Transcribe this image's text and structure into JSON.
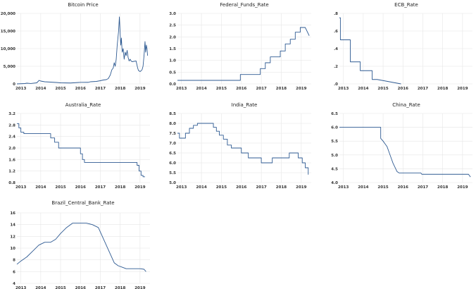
{
  "colors": {
    "series": "#2e5a92",
    "grid": "#e6e6e6",
    "background": "#ffffff"
  },
  "chart_data": [
    {
      "type": "line",
      "title": "Bitcoin Price",
      "x_ticks": [
        "2013",
        "2014",
        "2015",
        "2016",
        "2017",
        "2018",
        "2019"
      ],
      "xlim": [
        2012.8,
        2019.5
      ],
      "y_ticks": [
        0,
        5000,
        10000,
        15000,
        20000
      ],
      "y_tick_labels": [
        "0",
        "5,000",
        "10,000",
        "15,000",
        "20,000"
      ],
      "ylim": [
        0,
        20000
      ],
      "grid": true,
      "series": [
        {
          "x": [
            2012.8,
            2013.0,
            2013.2,
            2013.3,
            2013.5,
            2013.8,
            2013.92,
            2014.0,
            2014.2,
            2014.5,
            2014.8,
            2015.0,
            2015.5,
            2015.9,
            2016.0,
            2016.4,
            2016.5,
            2016.8,
            2017.0,
            2017.15,
            2017.3,
            2017.4,
            2017.5,
            2017.58,
            2017.65,
            2017.7,
            2017.75,
            2017.8,
            2017.85,
            2017.92,
            2017.96,
            2018.0,
            2018.03,
            2018.06,
            2018.1,
            2018.15,
            2018.2,
            2018.25,
            2018.3,
            2018.35,
            2018.4,
            2018.45,
            2018.5,
            2018.55,
            2018.6,
            2018.7,
            2018.8,
            2018.88,
            2018.92,
            2019.0,
            2019.05,
            2019.1,
            2019.15,
            2019.2,
            2019.25,
            2019.28,
            2019.32,
            2019.35,
            2019.38
          ],
          "y": [
            0,
            50,
            100,
            200,
            120,
            300,
            1000,
            800,
            600,
            500,
            400,
            300,
            250,
            400,
            430,
            450,
            600,
            700,
            900,
            1100,
            1200,
            1500,
            2500,
            4000,
            4500,
            6000,
            5000,
            7000,
            11000,
            15000,
            19000,
            14000,
            11000,
            13000,
            9000,
            10000,
            7000,
            9000,
            8000,
            9500,
            7500,
            6500,
            7000,
            6500,
            6300,
            6400,
            6500,
            4500,
            3800,
            3500,
            3700,
            4000,
            5000,
            8000,
            12000,
            9000,
            11000,
            10000,
            8000
          ]
        }
      ]
    },
    {
      "type": "line",
      "title": "Federal_Funds_Rate",
      "x_ticks": [
        "2013",
        "2014",
        "2015",
        "2016",
        "2017",
        "2018",
        "2019"
      ],
      "xlim": [
        2012.8,
        2019.5
      ],
      "y_ticks": [
        0.0,
        0.5,
        1.0,
        1.5,
        2.0,
        2.5,
        3.0
      ],
      "y_tick_labels": [
        "0.0",
        "0.5",
        "1.0",
        "1.5",
        "2.0",
        "2.5",
        "3.0"
      ],
      "ylim": [
        0,
        3.0
      ],
      "grid": true,
      "series": [
        {
          "x": [
            2012.8,
            2015.95,
            2015.95,
            2016.95,
            2016.95,
            2017.2,
            2017.2,
            2017.45,
            2017.45,
            2017.95,
            2017.95,
            2018.2,
            2018.2,
            2018.45,
            2018.45,
            2018.7,
            2018.7,
            2018.95,
            2018.95,
            2019.2,
            2019.4
          ],
          "y": [
            0.15,
            0.15,
            0.4,
            0.4,
            0.65,
            0.65,
            0.9,
            0.9,
            1.15,
            1.15,
            1.4,
            1.4,
            1.7,
            1.7,
            1.9,
            1.9,
            2.2,
            2.2,
            2.4,
            2.4,
            2.05
          ]
        }
      ]
    },
    {
      "type": "line",
      "title": "ECB_Rate",
      "x_ticks": [
        "2013",
        "2014",
        "2015",
        "2016",
        "2017",
        "2018",
        "2019"
      ],
      "xlim": [
        2012.8,
        2019.5
      ],
      "y_ticks": [
        0.0,
        0.2,
        0.4,
        0.6,
        0.8
      ],
      "y_tick_labels": [
        ".0",
        ".2",
        ".4",
        ".6",
        ".8"
      ],
      "ylim": [
        0,
        0.8
      ],
      "grid": true,
      "series": [
        {
          "x": [
            2012.8,
            2012.85,
            2012.85,
            2013.35,
            2013.35,
            2013.85,
            2013.85,
            2014.45,
            2014.45,
            2014.7,
            2014.7,
            2015.9
          ],
          "y": [
            0.75,
            0.75,
            0.5,
            0.5,
            0.25,
            0.25,
            0.15,
            0.15,
            0.05,
            0.05,
            0.05,
            0.0
          ]
        }
      ]
    },
    {
      "type": "line",
      "title": "Australia_Rate",
      "x_ticks": [
        "2013",
        "2014",
        "2015",
        "2016",
        "2017",
        "2018",
        "2019"
      ],
      "xlim": [
        2012.8,
        2019.5
      ],
      "y_ticks": [
        0.8,
        1.2,
        1.6,
        2.0,
        2.4,
        2.8,
        3.2
      ],
      "y_tick_labels": [
        "0.8",
        "1.2",
        "1.6",
        "2.0",
        "2.4",
        "2.8",
        "3.2"
      ],
      "ylim": [
        0.8,
        3.2
      ],
      "grid": true,
      "series": [
        {
          "x": [
            2012.8,
            2012.9,
            2012.9,
            2013.0,
            2013.0,
            2013.15,
            2013.15,
            2014.5,
            2014.5,
            2014.7,
            2014.7,
            2014.9,
            2014.9,
            2016.0,
            2016.0,
            2016.1,
            2016.1,
            2016.2,
            2016.2,
            2018.85,
            2018.85,
            2018.95,
            2018.95,
            2019.05,
            2019.05,
            2019.15,
            2019.15,
            2019.25
          ],
          "y": [
            2.85,
            2.85,
            2.7,
            2.7,
            2.55,
            2.55,
            2.5,
            2.5,
            2.35,
            2.35,
            2.2,
            2.2,
            2.0,
            2.0,
            1.8,
            1.8,
            1.6,
            1.6,
            1.5,
            1.5,
            1.4,
            1.4,
            1.2,
            1.2,
            1.05,
            1.05,
            1.0,
            1.0
          ]
        }
      ]
    },
    {
      "type": "line",
      "title": "India_Rate",
      "x_ticks": [
        "2013",
        "2014",
        "2015",
        "2016",
        "2017",
        "2018",
        "2019"
      ],
      "xlim": [
        2012.8,
        2019.5
      ],
      "y_ticks": [
        5.0,
        5.5,
        6.0,
        6.5,
        7.0,
        7.5,
        8.0,
        8.5
      ],
      "y_tick_labels": [
        "5.0",
        "5.5",
        "6.0",
        "6.5",
        "7.0",
        "7.5",
        "8.0",
        "8.5"
      ],
      "ylim": [
        5.0,
        8.5
      ],
      "grid": true,
      "series": [
        {
          "x": [
            2012.8,
            2012.9,
            2012.9,
            2013.2,
            2013.2,
            2013.4,
            2013.4,
            2013.6,
            2013.6,
            2013.8,
            2013.8,
            2014.6,
            2014.6,
            2014.75,
            2014.75,
            2014.9,
            2014.9,
            2015.1,
            2015.1,
            2015.3,
            2015.3,
            2015.5,
            2015.5,
            2016.0,
            2016.0,
            2016.35,
            2016.35,
            2017.0,
            2017.0,
            2017.55,
            2017.55,
            2018.4,
            2018.4,
            2018.85,
            2018.85,
            2019.05,
            2019.05,
            2019.2,
            2019.2,
            2019.35,
            2019.35
          ],
          "y": [
            7.5,
            7.5,
            7.25,
            7.25,
            7.5,
            7.5,
            7.75,
            7.75,
            7.9,
            7.9,
            8.0,
            8.0,
            7.8,
            7.8,
            7.6,
            7.6,
            7.4,
            7.4,
            7.2,
            7.2,
            6.9,
            6.9,
            6.75,
            6.75,
            6.5,
            6.5,
            6.25,
            6.25,
            6.0,
            6.0,
            6.25,
            6.25,
            6.5,
            6.5,
            6.25,
            6.25,
            6.0,
            6.0,
            5.75,
            5.75,
            5.4
          ]
        }
      ]
    },
    {
      "type": "line",
      "title": "China_Rate",
      "x_ticks": [
        "2013",
        "2014",
        "2015",
        "2016",
        "2017",
        "2018",
        "2019"
      ],
      "xlim": [
        2012.8,
        2019.5
      ],
      "y_ticks": [
        4.0,
        4.5,
        5.0,
        5.5,
        6.0,
        6.5
      ],
      "y_tick_labels": [
        "4.0",
        "4.5",
        "5.0",
        "5.5",
        "6.0",
        "6.5"
      ],
      "ylim": [
        4.0,
        6.5
      ],
      "grid": true,
      "series": [
        {
          "x": [
            2012.8,
            2014.88,
            2014.88,
            2015.0,
            2015.1,
            2015.2,
            2015.3,
            2015.4,
            2015.5,
            2015.6,
            2015.7,
            2015.8,
            2015.9,
            2016.0,
            2016.9,
            2016.95,
            2019.3,
            2019.4
          ],
          "y": [
            6.0,
            6.0,
            5.6,
            5.5,
            5.4,
            5.3,
            5.1,
            4.9,
            4.7,
            4.55,
            4.4,
            4.35,
            4.35,
            4.35,
            4.35,
            4.3,
            4.3,
            4.2
          ]
        }
      ]
    },
    {
      "type": "line",
      "title": "Brazil_Central_Bank_Rate",
      "x_ticks": [
        "2013",
        "2014",
        "2015",
        "2016",
        "2017",
        "2018",
        "2019"
      ],
      "xlim": [
        2012.8,
        2019.5
      ],
      "y_ticks": [
        4,
        6,
        8,
        10,
        12,
        14,
        16
      ],
      "y_tick_labels": [
        "4",
        "6",
        "8",
        "10",
        "12",
        "14",
        "16"
      ],
      "ylim": [
        4,
        16
      ],
      "grid": true,
      "series": [
        {
          "x": [
            2012.8,
            2013.0,
            2013.3,
            2013.6,
            2013.9,
            2014.2,
            2014.5,
            2014.75,
            2015.0,
            2015.3,
            2015.6,
            2016.0,
            2016.3,
            2016.6,
            2016.9,
            2017.1,
            2017.3,
            2017.5,
            2017.7,
            2017.9,
            2018.1,
            2018.3,
            2018.6,
            2019.0,
            2019.2,
            2019.3
          ],
          "y": [
            7.25,
            7.8,
            8.5,
            9.5,
            10.5,
            11.0,
            11.0,
            11.5,
            12.5,
            13.5,
            14.25,
            14.25,
            14.25,
            14.0,
            13.5,
            12.0,
            10.5,
            9.0,
            7.5,
            7.0,
            6.75,
            6.5,
            6.5,
            6.5,
            6.4,
            6.0
          ]
        }
      ]
    }
  ]
}
